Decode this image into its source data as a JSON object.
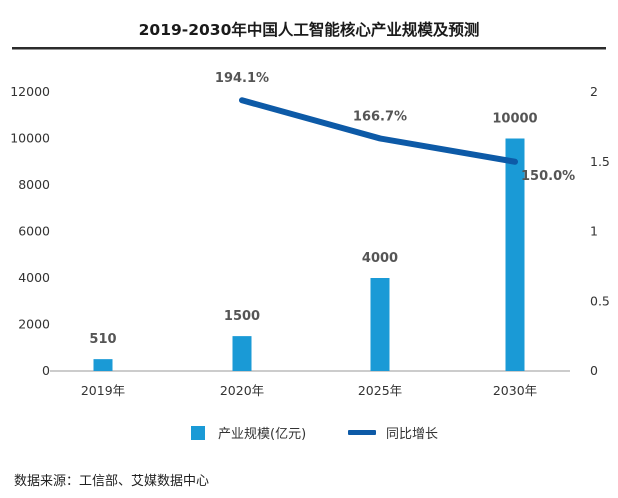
{
  "chart_data": {
    "type": "bar",
    "title": "2019-2030年中国人工智能核心产业规模及预测",
    "categories": [
      "2019年",
      "2020年",
      "2025年",
      "2030年"
    ],
    "series": [
      {
        "name": "产业规模(亿元)",
        "type": "bar",
        "axis": "left",
        "color": "#1a9ad6",
        "values": [
          510,
          1500,
          4000,
          10000
        ],
        "value_labels": [
          "510",
          "1500",
          "4000",
          "10000"
        ]
      },
      {
        "name": "同比增长",
        "type": "line",
        "axis": "right",
        "color": "#0d5aa7",
        "values": [
          null,
          1.941,
          1.667,
          1.5
        ],
        "value_labels": [
          null,
          "194.1%",
          "166.7%",
          "150.0%"
        ]
      }
    ],
    "y_left": {
      "range": [
        0,
        12000
      ],
      "ticks": [
        0,
        2000,
        4000,
        6000,
        8000,
        10000,
        12000
      ],
      "tick_labels": [
        "0",
        "2000",
        "4000",
        "6000",
        "8000",
        "10000",
        "12000"
      ]
    },
    "y_right": {
      "range": [
        0,
        2
      ],
      "ticks": [
        0,
        0.5,
        1,
        1.5,
        2
      ],
      "tick_labels": [
        "0",
        "0.5",
        "1",
        "1.5",
        "2"
      ]
    },
    "grid": false,
    "legend_position": "bottom"
  },
  "source": "数据来源：工信部、艾媒数据中心",
  "colors": {
    "bar": "#1a9ad6",
    "line": "#0d5aa7",
    "title_rule": "#2b2b2b",
    "axis": "#999999"
  }
}
